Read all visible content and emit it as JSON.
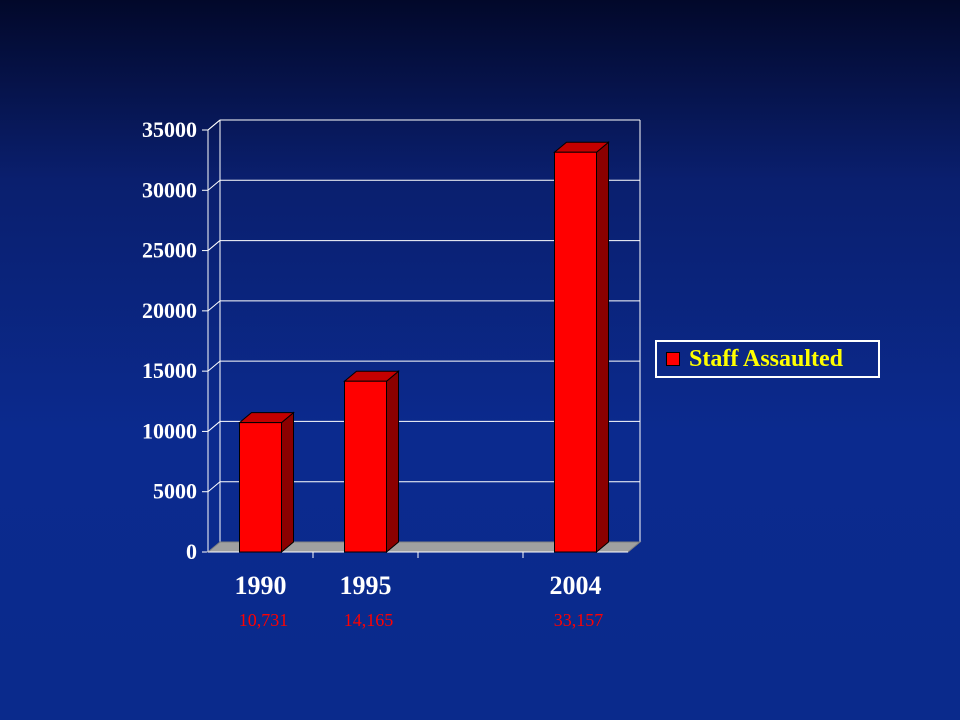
{
  "colors": {
    "bar_front": "#ff0000",
    "bar_side": "#8b0000",
    "bar_top": "#c40000",
    "floor": "#a0a0a0",
    "grid": "#ffffff",
    "tick_text": "#ffffff",
    "value_text": "#ff0000",
    "legend_text": "#ffff00"
  },
  "chart_data": {
    "type": "bar",
    "categories": [
      "1990",
      "1995",
      "",
      "2004"
    ],
    "series": [
      {
        "name": "Staff Assaulted",
        "values": [
          10731,
          14165,
          null,
          33157
        ]
      }
    ],
    "value_labels": [
      "10,731",
      "14,165",
      "",
      "33,157"
    ],
    "y_ticks": [
      "0",
      "5000",
      "10000",
      "15000",
      "20000",
      "25000",
      "30000",
      "35000"
    ],
    "ylim": [
      0,
      35000
    ],
    "grid": true,
    "legend_position": "right",
    "style": "3d"
  }
}
